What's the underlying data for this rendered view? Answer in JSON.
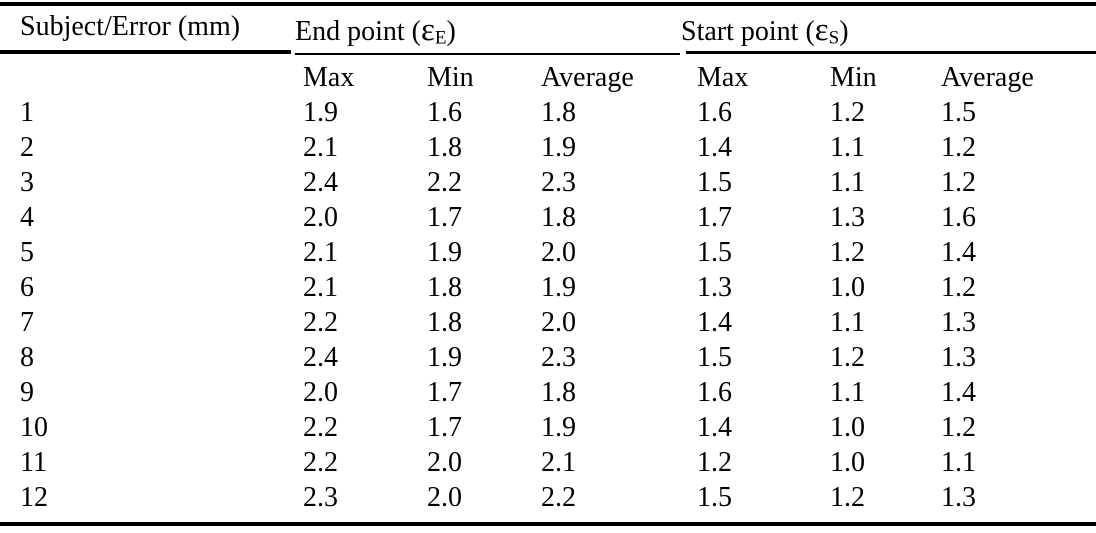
{
  "colors": {
    "background": "#ffffff",
    "text": "#000000",
    "rule": "#000000"
  },
  "table": {
    "corner_header": "Subject/Error (mm)",
    "groups": [
      {
        "text": "End point (",
        "symbol": "ε",
        "sub": "E",
        "close": ")"
      },
      {
        "text": "Start point (",
        "symbol": "ε",
        "sub": "S",
        "close": ")"
      }
    ],
    "sub_headers": [
      "Max",
      "Min",
      "Average",
      "Max",
      "Min",
      "Average"
    ],
    "rows": [
      {
        "subject": "1",
        "values": [
          "1.9",
          "1.6",
          "1.8",
          "1.6",
          "1.2",
          "1.5"
        ]
      },
      {
        "subject": "2",
        "values": [
          "2.1",
          "1.8",
          "1.9",
          "1.4",
          "1.1",
          "1.2"
        ]
      },
      {
        "subject": "3",
        "values": [
          "2.4",
          "2.2",
          "2.3",
          "1.5",
          "1.1",
          "1.2"
        ]
      },
      {
        "subject": "4",
        "values": [
          "2.0",
          "1.7",
          "1.8",
          "1.7",
          "1.3",
          "1.6"
        ]
      },
      {
        "subject": "5",
        "values": [
          "2.1",
          "1.9",
          "2.0",
          "1.5",
          "1.2",
          "1.4"
        ]
      },
      {
        "subject": "6",
        "values": [
          "2.1",
          "1.8",
          "1.9",
          "1.3",
          "1.0",
          "1.2"
        ]
      },
      {
        "subject": "7",
        "values": [
          "2.2",
          "1.8",
          "2.0",
          "1.4",
          "1.1",
          "1.3"
        ]
      },
      {
        "subject": "8",
        "values": [
          "2.4",
          "1.9",
          "2.3",
          "1.5",
          "1.2",
          "1.3"
        ]
      },
      {
        "subject": "9",
        "values": [
          "2.0",
          "1.7",
          "1.8",
          "1.6",
          "1.1",
          "1.4"
        ]
      },
      {
        "subject": "10",
        "values": [
          "2.2",
          "1.7",
          "1.9",
          "1.4",
          "1.0",
          "1.2"
        ]
      },
      {
        "subject": "11",
        "values": [
          "2.2",
          "2.0",
          "2.1",
          "1.2",
          "1.0",
          "1.1"
        ]
      },
      {
        "subject": "12",
        "values": [
          "2.3",
          "2.0",
          "2.2",
          "1.5",
          "1.2",
          "1.3"
        ]
      }
    ]
  }
}
